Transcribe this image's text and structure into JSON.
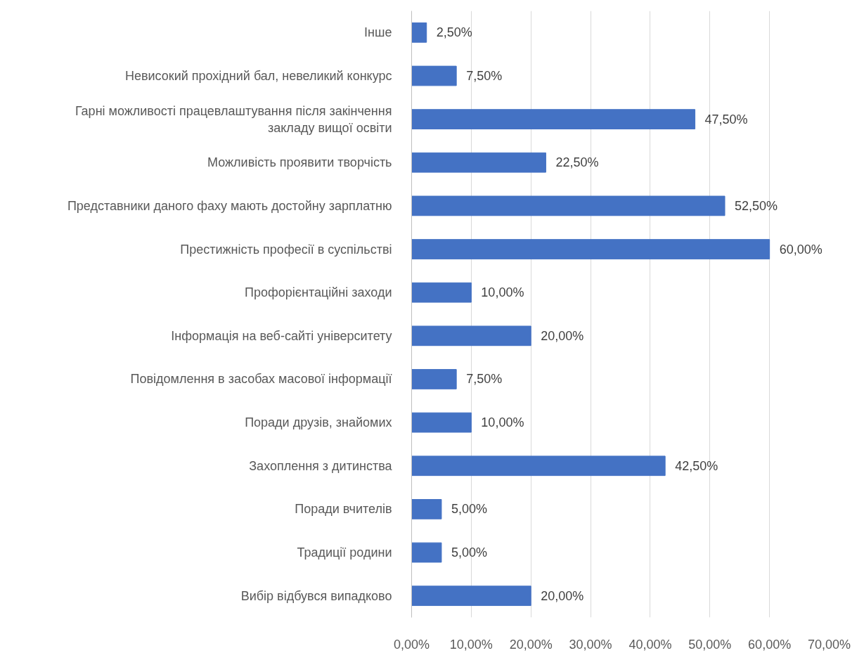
{
  "chart_data": {
    "type": "bar",
    "orientation": "horizontal",
    "categories": [
      "Інше",
      "Невисокий прохідний бал, невеликий конкурс",
      "Гарні можливості працевлаштування після закінчення закладу вищої освіти",
      "Можливість проявити творчість",
      "Представники даного фаху мають достойну зарплатню",
      "Престижність професії в суспільстві",
      "Профорієнтаційні заходи",
      "Інформація на веб-сайті університету",
      "Повідомлення в засобах масової інформації",
      "Поради друзів, знайомих",
      "Захоплення з дитинства",
      "Поради вчителів",
      "Традиції родини",
      "Вибір відбувся випадково"
    ],
    "values": [
      2.5,
      7.5,
      47.5,
      22.5,
      52.5,
      60,
      10,
      20,
      7.5,
      10,
      42.5,
      5,
      5,
      20
    ],
    "value_labels": [
      "2,50%",
      "7,50%",
      "47,50%",
      "22,50%",
      "52,50%",
      "60,00%",
      "10,00%",
      "20,00%",
      "7,50%",
      "10,00%",
      "42,50%",
      "5,00%",
      "5,00%",
      "20,00%"
    ],
    "color": "#4472c4",
    "xlim": [
      0,
      70
    ],
    "xticks": [
      {
        "value": 0,
        "label": "0,00%"
      },
      {
        "value": 10,
        "label": "10,00%"
      },
      {
        "value": 20,
        "label": "20,00%"
      },
      {
        "value": 30,
        "label": "30,00%"
      },
      {
        "value": 40,
        "label": "40,00%"
      },
      {
        "value": 50,
        "label": "50,00%"
      },
      {
        "value": 60,
        "label": "60,00%"
      },
      {
        "value": 70,
        "label": "70,00%"
      }
    ],
    "grid": "x"
  }
}
